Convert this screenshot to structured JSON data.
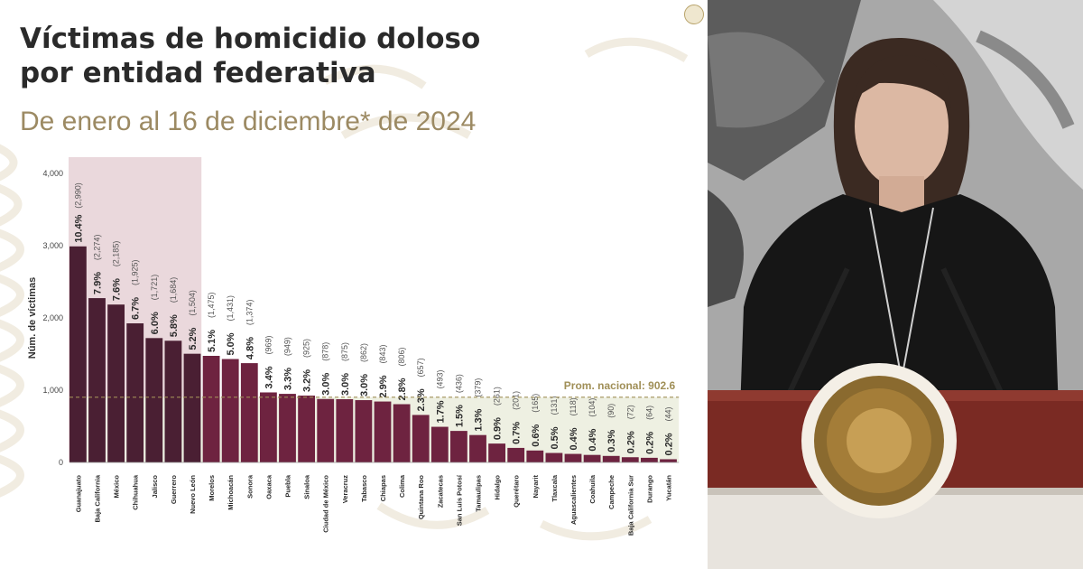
{
  "slide": {
    "title_line1": "Víctimas de homicidio doloso",
    "title_line2": "por entidad federativa",
    "subtitle": "De enero al 16 de diciembre* de 2024"
  },
  "colors": {
    "bar_top": "#4a1f33",
    "bar_rest": "#6e2340",
    "highlight_band": "#ead8dc",
    "average_band": "#eef0e2",
    "average_line": "#a08f57",
    "title": "#2a2a2a",
    "subtitle": "#9c8a63"
  },
  "chart_data": {
    "type": "bar",
    "ylabel": "Núm. de víctimas",
    "ylim": [
      0,
      4000
    ],
    "yticks": [
      "0",
      "1,000",
      "2,000",
      "3,000",
      "4,000"
    ],
    "highlight_first": 7,
    "average": {
      "value": 902.6,
      "label": "Prom. nacional: 902.6"
    },
    "categories": [
      "Guanajuato",
      "Baja California",
      "México",
      "Chihuahua",
      "Jalisco",
      "Guerrero",
      "Nuevo León",
      "Morelos",
      "Michoacán",
      "Sonora",
      "Oaxaca",
      "Puebla",
      "Sinaloa",
      "Ciudad de México",
      "Veracruz",
      "Tabasco",
      "Chiapas",
      "Colima",
      "Quintana Roo",
      "Zacatecas",
      "San Luis Potosí",
      "Tamaulipas",
      "Hidalgo",
      "Querétaro",
      "Nayarit",
      "Tlaxcala",
      "Aguascalientes",
      "Coahuila",
      "Campeche",
      "Baja California Sur",
      "Durango",
      "Yucatán"
    ],
    "values": [
      2990,
      2274,
      2185,
      1925,
      1721,
      1684,
      1504,
      1475,
      1431,
      1374,
      969,
      949,
      925,
      878,
      875,
      862,
      843,
      806,
      657,
      493,
      436,
      379,
      261,
      201,
      165,
      131,
      118,
      104,
      90,
      72,
      64,
      44
    ],
    "value_labels": [
      "(2,990)",
      "(2,274)",
      "(2,185)",
      "(1,925)",
      "(1,721)",
      "(1,684)",
      "(1,504)",
      "(1,475)",
      "(1,431)",
      "(1,374)",
      "(969)",
      "(949)",
      "(925)",
      "(878)",
      "(875)",
      "(862)",
      "(843)",
      "(806)",
      "(657)",
      "(493)",
      "(436)",
      "(379)",
      "(261)",
      "(201)",
      "(165)",
      "(131)",
      "(118)",
      "(104)",
      "(90)",
      "(72)",
      "(64)",
      "(44)"
    ],
    "percent_labels": [
      "10.4%",
      "7.9%",
      "7.6%",
      "6.7%",
      "6.0%",
      "5.8%",
      "5.2%",
      "5.1%",
      "5.0%",
      "4.8%",
      "3.4%",
      "3.3%",
      "3.2%",
      "3.0%",
      "3.0%",
      "3.0%",
      "2.9%",
      "2.8%",
      "2.3%",
      "1.7%",
      "1.5%",
      "1.3%",
      "0.9%",
      "0.7%",
      "0.6%",
      "0.5%",
      "0.4%",
      "0.4%",
      "0.3%",
      "0.2%",
      "0.2%",
      "0.2%"
    ]
  }
}
